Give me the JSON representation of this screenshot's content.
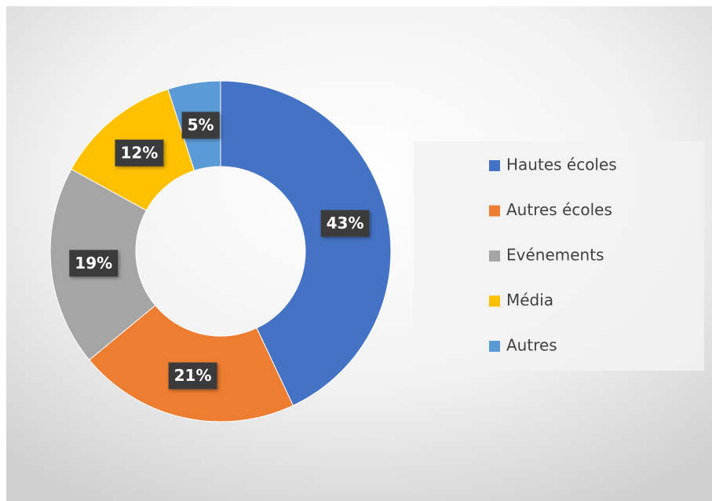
{
  "chart_data": {
    "type": "donut",
    "categories": [
      "Hautes écoles",
      "Autres écoles",
      "Evénements",
      "Média",
      "Autres"
    ],
    "values": [
      43,
      21,
      19,
      12,
      5
    ],
    "value_labels": [
      "43%",
      "21%",
      "19%",
      "12%",
      "5%"
    ],
    "colors": [
      "#4472c4",
      "#ed7d31",
      "#a5a5a5",
      "#ffc000",
      "#5b9bd5"
    ],
    "legend": "right"
  }
}
